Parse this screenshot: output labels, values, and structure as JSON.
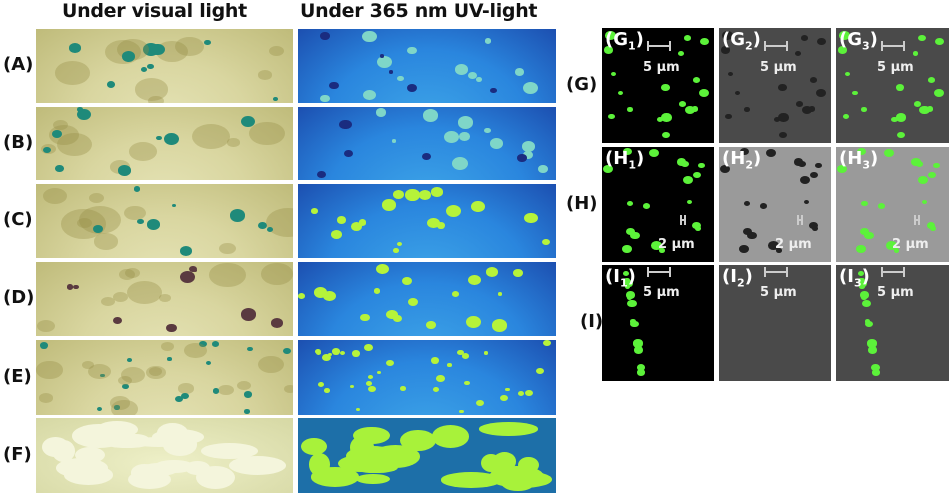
{
  "column_titles": {
    "visual": "Under visual light",
    "uv": "Under 365 nm UV-light"
  },
  "plate_rows": [
    {
      "label": "(A)"
    },
    {
      "label": "(B)"
    },
    {
      "label": "(C)"
    },
    {
      "label": "(D)"
    },
    {
      "label": "(E)"
    },
    {
      "label": "(F)"
    }
  ],
  "micro_rows": [
    {
      "label": "(G)",
      "letter": "G",
      "scale": "5 μm",
      "panels": [
        "1",
        "2",
        "3"
      ]
    },
    {
      "label": "(H)",
      "letter": "H",
      "scale": "2 μm",
      "panels": [
        "1",
        "2",
        "3"
      ]
    },
    {
      "label": "(I)",
      "letter": "I",
      "scale": "5 μm",
      "panels": [
        "1",
        "2",
        "3"
      ]
    }
  ],
  "colors": {
    "colony_visual": "#1f8a7a",
    "fluorescence": "#5cf23a",
    "uv_background": "#2a86de"
  }
}
